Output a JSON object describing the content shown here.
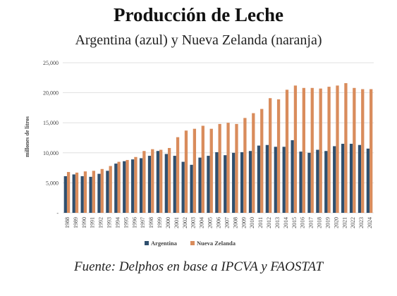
{
  "chart_data": {
    "type": "bar",
    "title": "Producción de Leche",
    "subtitle": "Argentina (azul) y Nueva Zelanda (naranja)",
    "ylabel": "millones de litros",
    "xlabel": "",
    "ylim": [
      0,
      25000
    ],
    "yticks": [
      "25,000",
      "20,000",
      "15,000",
      "10,000",
      "5,000",
      "-"
    ],
    "ytick_values": [
      25000,
      20000,
      15000,
      10000,
      5000,
      0
    ],
    "grid": true,
    "legend_position": "bottom",
    "categories": [
      "1988",
      "1989",
      "1990",
      "1991",
      "1992",
      "1993",
      "1994",
      "1995",
      "1996",
      "1997",
      "1998",
      "1999",
      "2000",
      "2001",
      "2002",
      "2003",
      "2004",
      "2005",
      "2006",
      "2007",
      "2008",
      "2009",
      "2010",
      "2011",
      "2012",
      "2013",
      "2014",
      "2015",
      "2016",
      "2017",
      "2018",
      "2019",
      "2020",
      "2021",
      "2022",
      "2023",
      "2024"
    ],
    "series": [
      {
        "name": "Argentina",
        "color": "#2f4f6e",
        "values": [
          6100,
          6400,
          6100,
          6000,
          6500,
          7000,
          8200,
          8600,
          8900,
          9100,
          9500,
          10300,
          9800,
          9500,
          8500,
          8000,
          9200,
          9500,
          10100,
          9600,
          10000,
          10100,
          10300,
          11200,
          11300,
          11000,
          11000,
          12100,
          10200,
          10000,
          10500,
          10300,
          11100,
          11500,
          11500,
          11300,
          10700
        ]
      },
      {
        "name": "Nueva Zelanda",
        "color": "#d98c5c",
        "values": [
          6800,
          6700,
          6900,
          7000,
          7300,
          7800,
          8500,
          8800,
          9300,
          10300,
          10600,
          10500,
          10800,
          12600,
          13700,
          14000,
          14500,
          14000,
          14800,
          15000,
          14800,
          15800,
          16600,
          17300,
          19100,
          18900,
          20500,
          21200,
          20800,
          20800,
          20700,
          21000,
          21200,
          21600,
          20800,
          20600,
          20600
        ]
      }
    ]
  },
  "source_note": "Fuente: Delphos en base a IPCVA y FAOSTAT"
}
